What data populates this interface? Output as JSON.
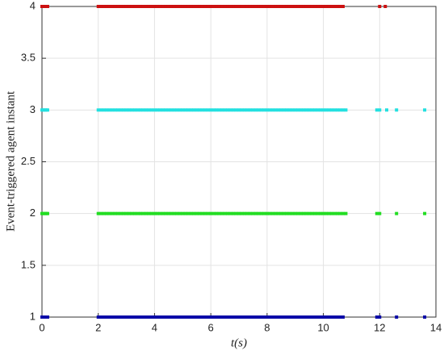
{
  "chart_data": {
    "type": "scatter",
    "x_label": "t(s)",
    "y_label": "Event-triggered agent instant",
    "xlim": [
      0,
      14
    ],
    "xticks": [
      0,
      2,
      4,
      6,
      8,
      10,
      12,
      14
    ],
    "ylim": [
      1,
      4
    ],
    "yticks": [
      1,
      1.5,
      2,
      2.5,
      3,
      3.5,
      4
    ],
    "grid": true,
    "series": [
      {
        "color": "#0a0aa8",
        "y": 1,
        "x": [
          0,
          0.05,
          0.1,
          0.15,
          0.2,
          2,
          2.1,
          2.2,
          2.3,
          2.4,
          2.5,
          2.6,
          2.7,
          2.8,
          2.9,
          3,
          3.1,
          3.2,
          3.3,
          3.4,
          3.5,
          3.6,
          3.7,
          3.8,
          3.9,
          4,
          4.1,
          4.2,
          4.3,
          4.4,
          4.5,
          4.6,
          4.7,
          4.8,
          4.9,
          5,
          5.1,
          5.2,
          5.3,
          5.4,
          5.5,
          5.6,
          5.7,
          5.8,
          5.9,
          6,
          6.1,
          6.2,
          6.3,
          6.4,
          6.5,
          6.6,
          6.7,
          6.8,
          6.9,
          7,
          7.1,
          7.2,
          7.3,
          7.4,
          7.5,
          7.6,
          7.7,
          7.8,
          7.9,
          8,
          8.1,
          8.2,
          8.3,
          8.4,
          8.5,
          8.6,
          8.7,
          8.8,
          8.9,
          9,
          9.1,
          9.2,
          9.3,
          9.4,
          9.5,
          9.6,
          9.7,
          9.8,
          9.9,
          10,
          10.1,
          10.2,
          10.3,
          10.4,
          10.5,
          10.6,
          10.7,
          11.9,
          12,
          12.6,
          13.6
        ]
      },
      {
        "color": "#22dd22",
        "y": 2,
        "x": [
          0,
          0.05,
          0.1,
          0.15,
          0.2,
          2,
          2.1,
          2.2,
          2.3,
          2.4,
          2.5,
          2.6,
          2.7,
          2.8,
          2.9,
          3,
          3.1,
          3.2,
          3.3,
          3.4,
          3.5,
          3.6,
          3.7,
          3.8,
          3.9,
          4,
          4.1,
          4.2,
          4.3,
          4.4,
          4.5,
          4.6,
          4.7,
          4.8,
          4.9,
          5,
          5.1,
          5.2,
          5.3,
          5.4,
          5.5,
          5.6,
          5.7,
          5.8,
          5.9,
          6,
          6.1,
          6.2,
          6.3,
          6.4,
          6.5,
          6.6,
          6.7,
          6.8,
          6.9,
          7,
          7.1,
          7.2,
          7.3,
          7.4,
          7.5,
          7.6,
          7.7,
          7.8,
          7.9,
          8,
          8.1,
          8.2,
          8.3,
          8.4,
          8.5,
          8.6,
          8.7,
          8.8,
          8.9,
          9,
          9.1,
          9.2,
          9.3,
          9.4,
          9.5,
          9.6,
          9.7,
          9.8,
          9.9,
          10,
          10.1,
          10.2,
          10.3,
          10.4,
          10.5,
          10.6,
          10.7,
          10.8,
          11.9,
          12,
          12.6,
          13.6
        ]
      },
      {
        "color": "#22e0e0",
        "y": 3,
        "x": [
          0,
          0.05,
          0.1,
          0.15,
          0.2,
          2,
          2.1,
          2.2,
          2.3,
          2.4,
          2.5,
          2.6,
          2.7,
          2.8,
          2.9,
          3,
          3.1,
          3.2,
          3.3,
          3.4,
          3.5,
          3.6,
          3.7,
          3.8,
          3.9,
          4,
          4.1,
          4.2,
          4.3,
          4.4,
          4.5,
          4.6,
          4.7,
          4.8,
          4.9,
          5,
          5.1,
          5.2,
          5.3,
          5.4,
          5.5,
          5.6,
          5.7,
          5.8,
          5.9,
          6,
          6.1,
          6.2,
          6.3,
          6.4,
          6.5,
          6.6,
          6.7,
          6.8,
          6.9,
          7,
          7.1,
          7.2,
          7.3,
          7.4,
          7.5,
          7.6,
          7.7,
          7.8,
          7.9,
          8,
          8.1,
          8.2,
          8.3,
          8.4,
          8.5,
          8.6,
          8.7,
          8.8,
          8.9,
          9,
          9.1,
          9.2,
          9.3,
          9.4,
          9.5,
          9.6,
          9.7,
          9.8,
          9.9,
          10,
          10.1,
          10.2,
          10.3,
          10.4,
          10.5,
          10.6,
          10.7,
          10.8,
          11.9,
          12,
          12.25,
          12.6,
          13.6
        ]
      },
      {
        "color": "#cc1111",
        "y": 4,
        "x": [
          0,
          0.05,
          0.1,
          0.15,
          0.2,
          2,
          2.1,
          2.2,
          2.3,
          2.4,
          2.5,
          2.6,
          2.7,
          2.8,
          2.9,
          3,
          3.1,
          3.2,
          3.3,
          3.4,
          3.5,
          3.6,
          3.7,
          3.8,
          3.9,
          4,
          4.1,
          4.2,
          4.3,
          4.4,
          4.5,
          4.6,
          4.7,
          4.8,
          4.9,
          5,
          5.1,
          5.2,
          5.3,
          5.4,
          5.5,
          5.6,
          5.7,
          5.8,
          5.9,
          6,
          6.1,
          6.2,
          6.3,
          6.4,
          6.5,
          6.6,
          6.7,
          6.8,
          6.9,
          7,
          7.1,
          7.2,
          7.3,
          7.4,
          7.5,
          7.6,
          7.7,
          7.8,
          7.9,
          8,
          8.1,
          8.2,
          8.3,
          8.4,
          8.5,
          8.6,
          8.7,
          8.8,
          8.9,
          9,
          9.1,
          9.2,
          9.3,
          9.4,
          9.5,
          9.6,
          9.7,
          9.8,
          9.9,
          10,
          10.1,
          10.2,
          10.3,
          10.4,
          10.5,
          10.6,
          10.7,
          12,
          12.2
        ]
      }
    ]
  }
}
